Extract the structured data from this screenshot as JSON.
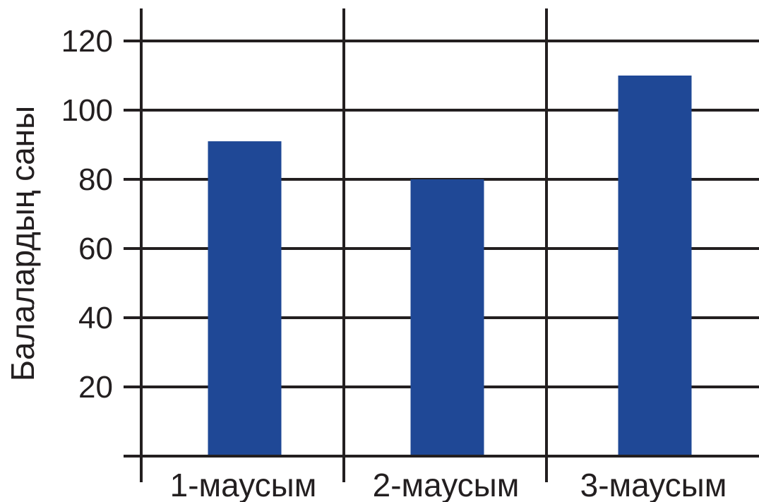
{
  "chart_data": {
    "type": "bar",
    "title": "",
    "xlabel": "",
    "ylabel": "Балалардың саны",
    "categories": [
      "1-маусым",
      "2-маусым",
      "3-маусым"
    ],
    "values": [
      91,
      80,
      110
    ],
    "ylim": [
      0,
      120
    ],
    "yticks": [
      20,
      40,
      60,
      80,
      100,
      120
    ],
    "ytick_labels": [
      "20",
      "40",
      "60",
      "80",
      "100",
      "120"
    ],
    "grid": true,
    "legend": "none",
    "bar_color": "#1f4896",
    "line_color": "#231f20"
  }
}
